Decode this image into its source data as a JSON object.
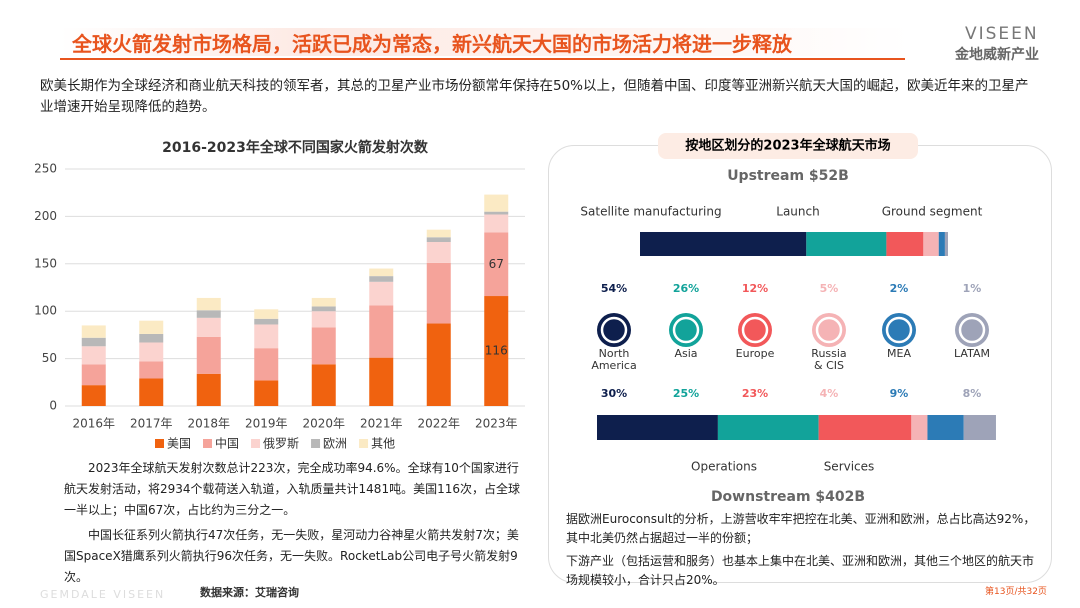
{
  "header": {
    "title": "全球火箭发射市场格局，活跃已成为常态，新兴航天大国的市场活力将进一步释放",
    "logo_en": "VISEEN",
    "logo_cn": "金地威新产业"
  },
  "intro": "欧美长期作为全球经济和商业航天科技的领军者，其总的卫星产业市场份额常年保持在50%以上，但随着中国、印度等亚洲新兴航天大国的崛起，欧美近年来的卫星产业增速开始呈现降低的趋势。",
  "chart_data": [
    {
      "type": "stacked-bar",
      "title": "2016-2023年全球不同国家火箭发射次数",
      "categories": [
        "2016年",
        "2017年",
        "2018年",
        "2019年",
        "2020年",
        "2021年",
        "2022年",
        "2023年"
      ],
      "series": [
        {
          "name": "美国",
          "color": "#f0620f",
          "values": [
            22,
            29,
            34,
            27,
            44,
            51,
            87,
            116
          ]
        },
        {
          "name": "中国",
          "color": "#f5a39a",
          "values": [
            22,
            18,
            39,
            34,
            39,
            55,
            64,
            67
          ]
        },
        {
          "name": "俄罗斯",
          "color": "#fbd3cf",
          "values": [
            19,
            20,
            20,
            25,
            17,
            25,
            22,
            19
          ]
        },
        {
          "name": "欧洲",
          "color": "#b8b8b8",
          "values": [
            9,
            9,
            8,
            6,
            5,
            6,
            5,
            3
          ]
        },
        {
          "name": "其他",
          "color": "#fbeac4",
          "values": [
            13,
            14,
            13,
            10,
            9,
            8,
            8,
            18
          ]
        }
      ],
      "ylim": [
        0,
        250
      ],
      "yticks": [
        0,
        50,
        100,
        150,
        200,
        250
      ],
      "grid": true,
      "legend": "bottom"
    },
    {
      "type": "share-bars",
      "title": "按地区划分的2023年全球航天市场",
      "categories": [
        "North America",
        "Asia",
        "Europe",
        "Russia & CIS",
        "MEA",
        "LATAM"
      ],
      "colors": [
        "#0e1f4d",
        "#12a39a",
        "#f2585a",
        "#f5b3b5",
        "#2c7bb6",
        "#9ea3b8"
      ],
      "series": [
        {
          "name": "Upstream $52B",
          "segments": [
            "Satellite manufacturing",
            "Launch",
            "Ground segment"
          ],
          "values": [
            54,
            26,
            12,
            5,
            2,
            1
          ],
          "value_labels": [
            "54%",
            "26%",
            "12%",
            "5%",
            "2%",
            "1%"
          ]
        },
        {
          "name": "Downstream $402B",
          "segments": [
            "Operations",
            "Services"
          ],
          "values": [
            30,
            25,
            23,
            4,
            9,
            8
          ],
          "value_labels": [
            "30%",
            "25%",
            "23%",
            "4%",
            "9%",
            "8%"
          ]
        }
      ]
    }
  ],
  "notes": [
    "2023年全球航天发射次数总计223次，完全成功率94.6%。全球有10个国家进行航天发射活动，将2934个载荷送入轨道，入轨质量共计1481吨。美国116次，占全球一半以上；中国67次，占比约为三分之一。",
    "中国长征系列火箭执行47次任务，无一失败，星河动力谷神星火箭共发射7次；美国SpaceX猎鹰系列火箭执行96次任务，无一失败。RocketLab公司电子号火箭发射9次。"
  ],
  "source": "数据来源：艾瑞咨询",
  "market_notes": [
    "据欧洲Euroconsult的分析，上游营收牢牢把控在北美、亚洲和欧洲，总占比高达92%，其中北美仍然占据超过一半的份额；",
    "下游产业（包括运营和服务）也基本上集中在北美、亚洲和欧洲，其他三个地区的航天市场规模较小，合计只占20%。"
  ],
  "footer": {
    "brand": "GEMDALE VISEEN",
    "page": "第13页/共32页"
  }
}
